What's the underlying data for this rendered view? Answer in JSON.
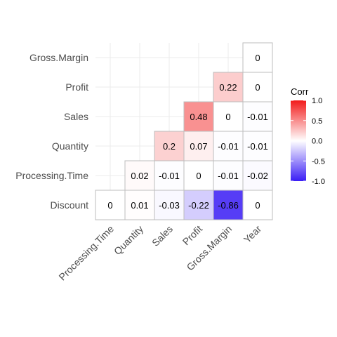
{
  "chart_data": {
    "type": "heatmap",
    "title": "",
    "x_labels": [
      "Processing.Time",
      "Quantity",
      "Sales",
      "Profit",
      "Gross.Margin",
      "Year"
    ],
    "y_labels": [
      "Discount",
      "Processing.Time",
      "Quantity",
      "Sales",
      "Profit",
      "Gross.Margin"
    ],
    "cells": [
      {
        "x": "Processing.Time",
        "y": "Discount",
        "value": 0,
        "label": "0"
      },
      {
        "x": "Quantity",
        "y": "Discount",
        "value": 0.01,
        "label": "0.01"
      },
      {
        "x": "Sales",
        "y": "Discount",
        "value": -0.03,
        "label": "-0.03"
      },
      {
        "x": "Profit",
        "y": "Discount",
        "value": -0.22,
        "label": "-0.22"
      },
      {
        "x": "Gross.Margin",
        "y": "Discount",
        "value": -0.86,
        "label": "-0.86"
      },
      {
        "x": "Year",
        "y": "Discount",
        "value": 0,
        "label": "0"
      },
      {
        "x": "Quantity",
        "y": "Processing.Time",
        "value": 0.02,
        "label": "0.02"
      },
      {
        "x": "Sales",
        "y": "Processing.Time",
        "value": -0.01,
        "label": "-0.01"
      },
      {
        "x": "Profit",
        "y": "Processing.Time",
        "value": 0,
        "label": "0"
      },
      {
        "x": "Gross.Margin",
        "y": "Processing.Time",
        "value": -0.01,
        "label": "-0.01"
      },
      {
        "x": "Year",
        "y": "Processing.Time",
        "value": -0.02,
        "label": "-0.02"
      },
      {
        "x": "Sales",
        "y": "Quantity",
        "value": 0.2,
        "label": "0.2"
      },
      {
        "x": "Profit",
        "y": "Quantity",
        "value": 0.07,
        "label": "0.07"
      },
      {
        "x": "Gross.Margin",
        "y": "Quantity",
        "value": -0.01,
        "label": "-0.01"
      },
      {
        "x": "Year",
        "y": "Quantity",
        "value": -0.01,
        "label": "-0.01"
      },
      {
        "x": "Profit",
        "y": "Sales",
        "value": 0.48,
        "label": "0.48"
      },
      {
        "x": "Gross.Margin",
        "y": "Sales",
        "value": 0,
        "label": "0"
      },
      {
        "x": "Year",
        "y": "Sales",
        "value": -0.01,
        "label": "-0.01"
      },
      {
        "x": "Gross.Margin",
        "y": "Profit",
        "value": 0.22,
        "label": "0.22"
      },
      {
        "x": "Year",
        "y": "Profit",
        "value": 0,
        "label": "0"
      },
      {
        "x": "Year",
        "y": "Gross.Margin",
        "value": 0,
        "label": "0"
      }
    ],
    "legend": {
      "title": "Corr",
      "range": [
        -1,
        1
      ],
      "ticks": [
        "1.0",
        "0.5",
        "0.0",
        "-0.5",
        "-1.0"
      ],
      "tick_values": [
        1,
        0.5,
        0,
        -0.5,
        -1
      ],
      "placement": "right",
      "low_color": "#3A1DF5",
      "mid_color": "#FFFFFF",
      "high_color": "#F21A1A"
    },
    "grid": true,
    "cell_border_color": "#BDBDBD"
  }
}
